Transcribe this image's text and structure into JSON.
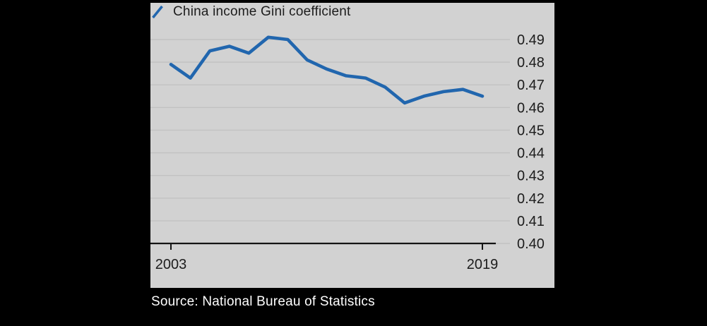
{
  "legend": {
    "label": "China income Gini coefficient"
  },
  "source": {
    "text": "Source: National Bureau of Statistics"
  },
  "chart_data": {
    "type": "line",
    "title": "China income Gini coefficient",
    "x": [
      2003,
      2004,
      2005,
      2006,
      2007,
      2008,
      2009,
      2010,
      2011,
      2012,
      2013,
      2014,
      2015,
      2016,
      2017,
      2018,
      2019
    ],
    "series": [
      {
        "name": "China income Gini coefficient",
        "values": [
          0.479,
          0.473,
          0.485,
          0.487,
          0.484,
          0.491,
          0.49,
          0.481,
          0.477,
          0.474,
          0.473,
          0.469,
          0.462,
          0.465,
          0.467,
          0.468,
          0.465
        ]
      }
    ],
    "xlabel": "",
    "ylabel": "",
    "x_tick_labels": [
      "2003",
      "2019"
    ],
    "y_ticks": [
      0.4,
      0.41,
      0.42,
      0.43,
      0.44,
      0.45,
      0.46,
      0.47,
      0.48,
      0.49
    ],
    "ylim": [
      0.4,
      0.493
    ],
    "grid": true,
    "legend_position": "top-left",
    "colors": {
      "line": "#2166ae",
      "panel_bg": "#d2d2d2",
      "page_bg": "#000000",
      "grid": "#c2c2c2",
      "axis": "#141414",
      "tick_text": "#1c1c1c",
      "source_text": "#ffffff"
    }
  }
}
